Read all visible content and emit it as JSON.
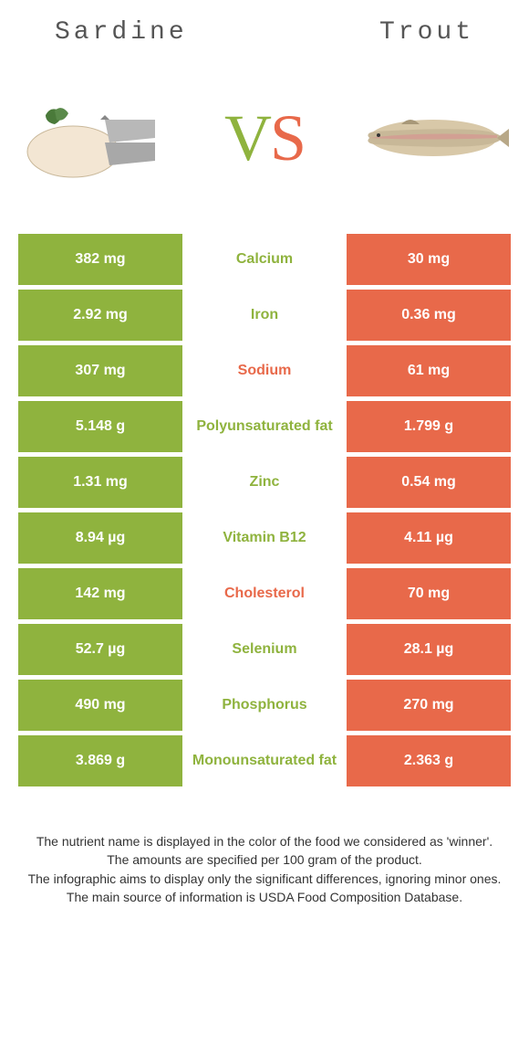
{
  "colors": {
    "left": "#8fb33e",
    "right": "#e8694a",
    "mid_bg": "#ffffff"
  },
  "header": {
    "left_title": "Sardine",
    "right_title": "Trout"
  },
  "vs": {
    "v": "V",
    "s": "S",
    "v_color": "#8fb33e",
    "s_color": "#e8694a"
  },
  "rows": [
    {
      "left": "382 mg",
      "label": "Calcium",
      "right": "30 mg",
      "winner": "left"
    },
    {
      "left": "2.92 mg",
      "label": "Iron",
      "right": "0.36 mg",
      "winner": "left"
    },
    {
      "left": "307 mg",
      "label": "Sodium",
      "right": "61 mg",
      "winner": "right"
    },
    {
      "left": "5.148 g",
      "label": "Polyunsaturated fat",
      "right": "1.799 g",
      "winner": "left"
    },
    {
      "left": "1.31 mg",
      "label": "Zinc",
      "right": "0.54 mg",
      "winner": "left"
    },
    {
      "left": "8.94 µg",
      "label": "Vitamin B12",
      "right": "4.11 µg",
      "winner": "left"
    },
    {
      "left": "142 mg",
      "label": "Cholesterol",
      "right": "70 mg",
      "winner": "right"
    },
    {
      "left": "52.7 µg",
      "label": "Selenium",
      "right": "28.1 µg",
      "winner": "left"
    },
    {
      "left": "490 mg",
      "label": "Phosphorus",
      "right": "270 mg",
      "winner": "left"
    },
    {
      "left": "3.869 g",
      "label": "Monounsaturated fat",
      "right": "2.363 g",
      "winner": "left"
    }
  ],
  "footnotes": [
    "The nutrient name is displayed in the color of the food we considered as 'winner'.",
    "The amounts are specified per 100 gram of the product.",
    "The infographic aims to display only the significant differences, ignoring minor ones.",
    "The main source of information is USDA Food Composition Database."
  ]
}
